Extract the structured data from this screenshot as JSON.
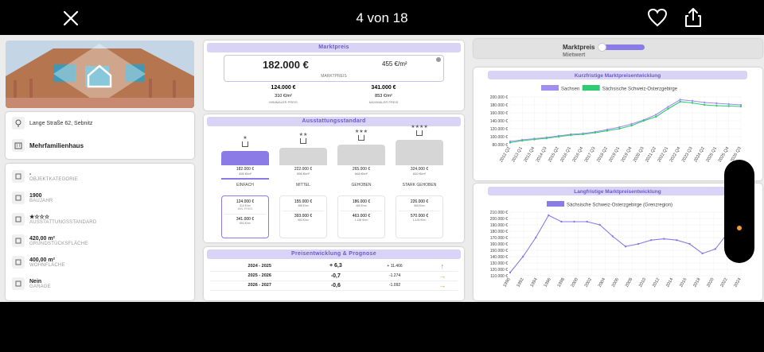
{
  "topbar": {
    "counter": "4 von 18"
  },
  "address": "Lange Straße 62, Sebnitz",
  "property_type": "Mehrfamilienhaus",
  "attributes": [
    {
      "icon": "home-icon",
      "value": "-",
      "label": "OBJEKTKATEGORIE"
    },
    {
      "icon": "construction-icon",
      "value": "1900",
      "label": "BAUJAHR"
    },
    {
      "icon": "diamond-icon",
      "value": "★☆☆☆",
      "label": "AUSSTATTUNGSSTANDARD"
    },
    {
      "icon": "area-icon",
      "value": "420,00 m²",
      "label": "GRUNDSTÜCKSFLÄCHE"
    },
    {
      "icon": "floorplan-icon",
      "value": "400,00 m²",
      "label": "WOHNFLÄCHE"
    },
    {
      "icon": "garage-icon",
      "value": "Nein",
      "label": "GARAGE"
    }
  ],
  "marktpreis": {
    "header": "Marktpreis",
    "price": "182.000 €",
    "price_per_m2": "455 €/m²",
    "sub": "MARKTPREIS",
    "min_price": "124.000 €",
    "min_m2": "310 €/m²",
    "min_label": "MINIMALER PREIS",
    "max_price": "341.000 €",
    "max_m2": "853 €/m²",
    "max_label": "MAXIMALER PREIS"
  },
  "ausstattung": {
    "header": "Ausstattungsstandard",
    "levels": [
      {
        "stars": "★",
        "price": "182.000 €",
        "m2": "455 €/m²",
        "label": "EINFACH",
        "bar": 0.25,
        "color": "#8b7be6",
        "min_price": "124.000 €",
        "min_m2": "310 €/m²",
        "min_lbl": "MIN. PREIS",
        "max_price": "341.000 €",
        "max_m2": "853 €/m²"
      },
      {
        "stars": "★★",
        "price": "222.000 €",
        "m2": "555 €/m²",
        "label": "MITTEL",
        "bar": 0.35,
        "color": "#d6d6d6",
        "min_price": "155.000 €",
        "min_m2": "388 €/m²",
        "min_lbl": "",
        "max_price": "393.000 €",
        "max_m2": "983 €/m²"
      },
      {
        "stars": "★★★",
        "price": "265.000 €",
        "m2": "663 €/m²",
        "label": "GEHOBEN",
        "bar": 0.45,
        "color": "#d6d6d6",
        "min_price": "186.000 €",
        "min_m2": "465 €/m²",
        "min_lbl": "",
        "max_price": "463.000 €",
        "max_m2": "1.158 €/m²"
      },
      {
        "stars": "★★★★",
        "price": "324.000 €",
        "m2": "810 €/m²",
        "label": "STARK GEHOBEN",
        "bar": 0.6,
        "color": "#d6d6d6",
        "min_price": "226.000 €",
        "min_m2": "565 €/m²",
        "min_lbl": "",
        "max_price": "570.000 €",
        "max_m2": "1.425 €/m²"
      }
    ]
  },
  "prognose": {
    "header": "Preisentwicklung & Prognose",
    "rows": [
      {
        "period": "2024 - 2025",
        "pct": "+ 6,3",
        "abs": "+ 11.466",
        "arrow": "↑",
        "color": "#3cb44b"
      },
      {
        "period": "2025 - 2026",
        "pct": "-0,7",
        "abs": "-1.274",
        "arrow": "→",
        "color": "#f0a020"
      },
      {
        "period": "2026 - 2027",
        "pct": "-0,6",
        "abs": "-1.092",
        "arrow": "→",
        "color": "#f0a020"
      }
    ]
  },
  "toggle": {
    "on_label": "Marktpreis",
    "off_label": "Mietwert"
  },
  "chart_data": [
    {
      "type": "line",
      "title": "Kurzfristige Marktpreisentwicklung",
      "legend": [
        "Sachsen",
        "Sächsische Schweiz-Osterzgebirge"
      ],
      "colors": [
        "#a08ef0",
        "#2ecc71"
      ],
      "y_ticks": [
        "200.000 €",
        "180.000 €",
        "160.000 €",
        "140.000 €",
        "120.000 €",
        "100.000 €",
        "80.000 €"
      ],
      "ylim": [
        80000,
        200000
      ],
      "x_ticks": [
        "2012 Q2",
        "2013 Q1",
        "2013 Q4",
        "2014 Q3",
        "2015 Q2",
        "2016 Q1",
        "2016 Q4",
        "2017 Q3",
        "2018 Q2",
        "2019 Q1",
        "2019 Q4",
        "2020 Q3",
        "2021 Q2",
        "2022 Q1",
        "2022 Q4",
        "2023 Q3",
        "2024 Q2",
        "2025 Q1",
        "2025 Q4",
        "2026 Q3"
      ],
      "series": [
        {
          "name": "Sachsen",
          "values": [
            88000,
            92000,
            95000,
            98000,
            102000,
            106000,
            108000,
            112000,
            118000,
            124000,
            132000,
            142000,
            155000,
            175000,
            193000,
            190000,
            186000,
            184000,
            182000,
            180000
          ]
        },
        {
          "name": "Sächsische Schweiz-Osterzgebirge",
          "values": [
            85000,
            90000,
            93000,
            96000,
            100000,
            104000,
            106000,
            110000,
            115000,
            120000,
            128000,
            140000,
            150000,
            170000,
            188000,
            185000,
            180000,
            178000,
            177000,
            176000
          ]
        }
      ]
    },
    {
      "type": "line",
      "title": "Langfristige Marktpreisentwicklung",
      "legend": [
        "Sächsische Schweiz-Osterzgebirge (Grenzregion)"
      ],
      "colors": [
        "#8b7be6"
      ],
      "y_ticks": [
        "210.000 €",
        "200.000 €",
        "190.000 €",
        "180.000 €",
        "170.000 €",
        "160.000 €",
        "150.000 €",
        "140.000 €",
        "130.000 €",
        "120.000 €",
        "110.000 €"
      ],
      "ylim": [
        110000,
        210000
      ],
      "x_ticks": [
        "1990",
        "1992",
        "1994",
        "1996",
        "1998",
        "2000",
        "2002",
        "2004",
        "2006",
        "2008",
        "2010",
        "2012",
        "2014",
        "2016",
        "2018",
        "2020",
        "2022",
        "2024"
      ],
      "series": [
        {
          "name": "Sächsische Schweiz-Osterzgebirge (Grenzregion)",
          "values": [
            115000,
            140000,
            170000,
            205000,
            195000,
            195000,
            195000,
            190000,
            172000,
            156000,
            160000,
            166000,
            168000,
            166000,
            160000,
            145000,
            152000,
            178000,
            180000
          ]
        }
      ]
    }
  ]
}
